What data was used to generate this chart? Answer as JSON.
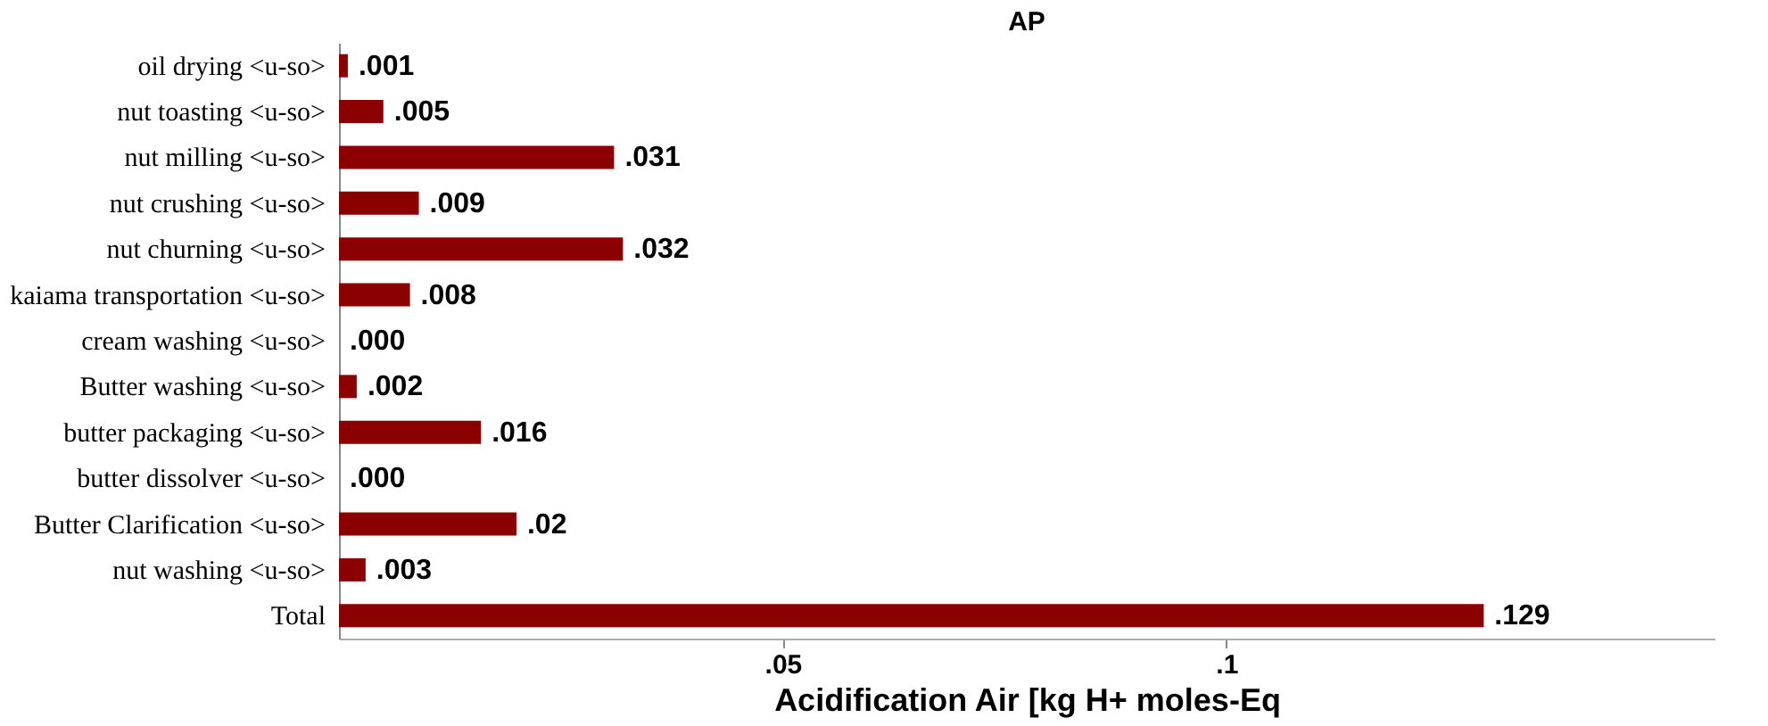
{
  "chart_data": {
    "type": "bar",
    "orientation": "horizontal",
    "title": "AP",
    "xlabel": "Acidification Air [kg H+ moles-Eq",
    "categories": [
      "oil drying <u-so>",
      "nut toasting <u-so>",
      "nut milling <u-so>",
      "nut crushing <u-so>",
      "nut churning <u-so>",
      "kaiama transportation <u-so>",
      "cream washing <u-so>",
      "Butter washing <u-so>",
      "butter packaging <u-so>",
      "butter dissolver <u-so>",
      "Butter Clarification <u-so>",
      "nut washing <u-so>",
      "Total"
    ],
    "values": [
      0.001,
      0.005,
      0.031,
      0.009,
      0.032,
      0.008,
      0.0,
      0.002,
      0.016,
      0.0,
      0.02,
      0.003,
      0.129
    ],
    "value_labels": [
      ".001",
      ".005",
      ".031",
      ".009",
      ".032",
      ".008",
      ".000",
      ".002",
      ".016",
      ".000",
      ".02",
      ".003",
      ".129"
    ],
    "color": "#8b0000",
    "xlim": [
      0,
      0.155
    ],
    "xticks": [
      {
        "value": 0.05,
        "label": ".05"
      },
      {
        "value": 0.1,
        "label": ".1"
      }
    ],
    "grid": false
  }
}
